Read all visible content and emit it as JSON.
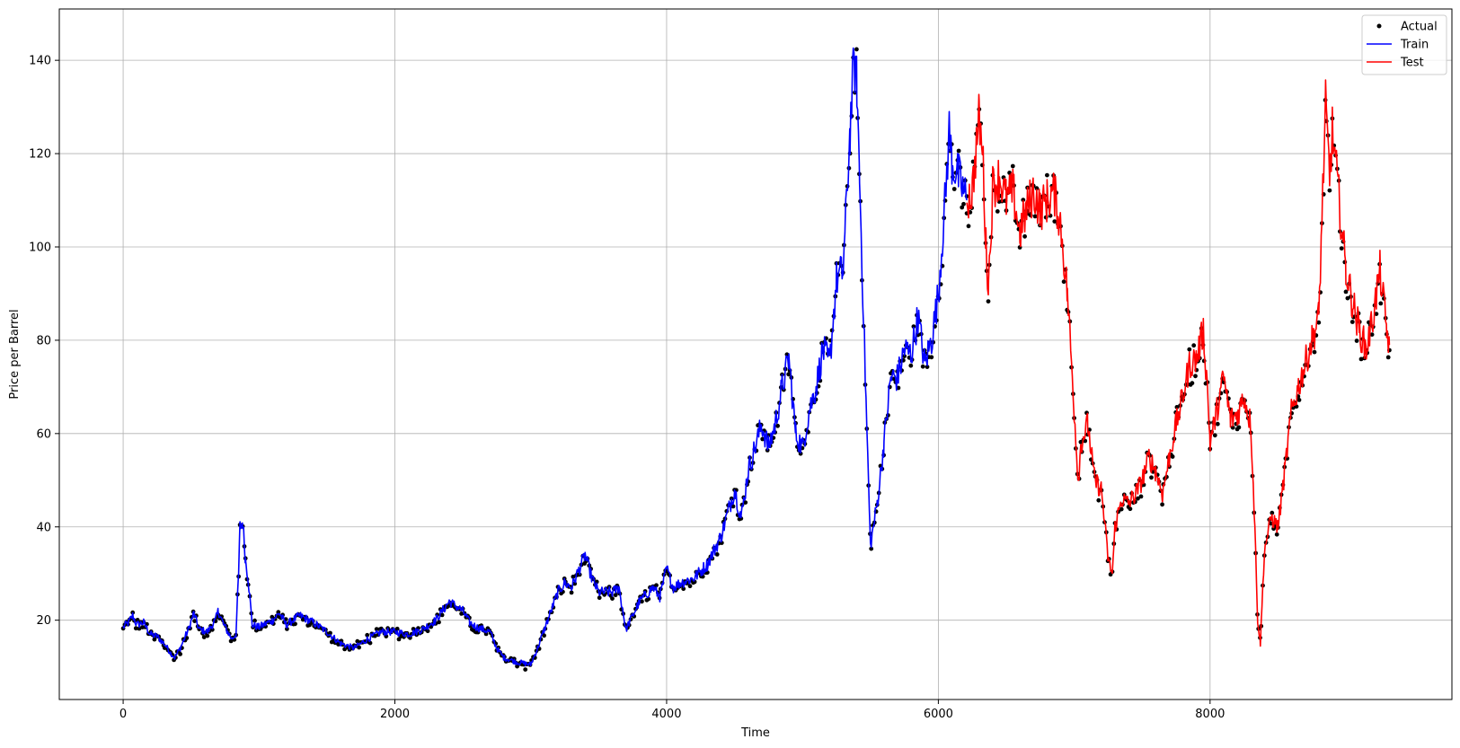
{
  "chart_data": {
    "type": "line",
    "title": "",
    "xlabel": "Time",
    "ylabel": "Price per Barrel",
    "xlim": [
      -470,
      9780
    ],
    "ylim": [
      3,
      151
    ],
    "xticks": [
      0,
      2000,
      4000,
      6000,
      8000
    ],
    "yticks": [
      20,
      40,
      60,
      80,
      100,
      120,
      140
    ],
    "grid": true,
    "legend_position": "top-right",
    "legend": [
      {
        "label": "Actual",
        "marker": "dot",
        "color": "#000000"
      },
      {
        "label": "Train",
        "marker": "line",
        "color": "#0000ff"
      },
      {
        "label": "Test",
        "marker": "line",
        "color": "#ff0000"
      }
    ],
    "train_end": 6210,
    "x_end": 9320,
    "series": [
      {
        "name": "Train",
        "color": "#0000ff",
        "keypoints": [
          [
            0,
            18.5
          ],
          [
            40,
            19.5
          ],
          [
            70,
            21.0
          ],
          [
            100,
            19.0
          ],
          [
            150,
            19.5
          ],
          [
            200,
            17.0
          ],
          [
            250,
            16.5
          ],
          [
            300,
            15.0
          ],
          [
            350,
            13.0
          ],
          [
            380,
            12.0
          ],
          [
            420,
            14.0
          ],
          [
            480,
            18.0
          ],
          [
            520,
            21.5
          ],
          [
            560,
            18.0
          ],
          [
            620,
            17.5
          ],
          [
            680,
            20.0
          ],
          [
            700,
            22.0
          ],
          [
            740,
            19.0
          ],
          [
            800,
            16.0
          ],
          [
            830,
            17.0
          ],
          [
            850,
            30.0
          ],
          [
            860,
            40.0
          ],
          [
            880,
            41.0
          ],
          [
            900,
            33.0
          ],
          [
            920,
            29.0
          ],
          [
            950,
            19.0
          ],
          [
            1000,
            18.5
          ],
          [
            1100,
            20.0
          ],
          [
            1150,
            21.5
          ],
          [
            1200,
            19.0
          ],
          [
            1300,
            21.0
          ],
          [
            1400,
            19.5
          ],
          [
            1500,
            17.5
          ],
          [
            1600,
            15.0
          ],
          [
            1700,
            14.0
          ],
          [
            1800,
            16.0
          ],
          [
            1900,
            17.5
          ],
          [
            2000,
            17.5
          ],
          [
            2100,
            17.0
          ],
          [
            2200,
            18.0
          ],
          [
            2300,
            20.0
          ],
          [
            2400,
            24.0
          ],
          [
            2500,
            22.0
          ],
          [
            2550,
            19.5
          ],
          [
            2600,
            18.5
          ],
          [
            2700,
            17.5
          ],
          [
            2750,
            14.0
          ],
          [
            2800,
            12.0
          ],
          [
            2900,
            11.0
          ],
          [
            3000,
            10.5
          ],
          [
            3050,
            14.0
          ],
          [
            3100,
            18.0
          ],
          [
            3200,
            26.0
          ],
          [
            3250,
            28.0
          ],
          [
            3300,
            27.0
          ],
          [
            3400,
            34.0
          ],
          [
            3450,
            29.0
          ],
          [
            3500,
            26.0
          ],
          [
            3600,
            26.0
          ],
          [
            3650,
            27.0
          ],
          [
            3700,
            18.0
          ],
          [
            3800,
            24.0
          ],
          [
            3900,
            27.0
          ],
          [
            3950,
            25.0
          ],
          [
            4000,
            31.0
          ],
          [
            4050,
            27.0
          ],
          [
            4100,
            28.0
          ],
          [
            4200,
            29.0
          ],
          [
            4300,
            32.0
          ],
          [
            4400,
            38.0
          ],
          [
            4500,
            48.0
          ],
          [
            4550,
            42.0
          ],
          [
            4600,
            52.0
          ],
          [
            4700,
            62.0
          ],
          [
            4750,
            57.0
          ],
          [
            4800,
            62.0
          ],
          [
            4850,
            70.0
          ],
          [
            4900,
            76.0
          ],
          [
            4950,
            60.0
          ],
          [
            5000,
            57.0
          ],
          [
            5050,
            65.0
          ],
          [
            5100,
            70.0
          ],
          [
            5150,
            78.0
          ],
          [
            5200,
            75.0
          ],
          [
            5250,
            93.0
          ],
          [
            5300,
            95.0
          ],
          [
            5350,
            125.0
          ],
          [
            5380,
            140.0
          ],
          [
            5400,
            135.0
          ],
          [
            5420,
            115.0
          ],
          [
            5450,
            85.0
          ],
          [
            5480,
            55.0
          ],
          [
            5500,
            36.0
          ],
          [
            5550,
            45.0
          ],
          [
            5600,
            58.0
          ],
          [
            5650,
            72.0
          ],
          [
            5700,
            72.0
          ],
          [
            5750,
            78.0
          ],
          [
            5800,
            77.0
          ],
          [
            5850,
            85.0
          ],
          [
            5900,
            75.0
          ],
          [
            5950,
            80.0
          ],
          [
            6000,
            90.0
          ],
          [
            6050,
            110.0
          ],
          [
            6080,
            125.0
          ],
          [
            6100,
            118.0
          ],
          [
            6150,
            115.0
          ],
          [
            6210,
            110.0
          ]
        ]
      },
      {
        "name": "Test",
        "color": "#ff0000",
        "keypoints": [
          [
            6210,
            110.0
          ],
          [
            6250,
            112.0
          ],
          [
            6300,
            128.0
          ],
          [
            6330,
            118.0
          ],
          [
            6350,
            100.0
          ],
          [
            6370,
            92.0
          ],
          [
            6400,
            113.0
          ],
          [
            6450,
            115.0
          ],
          [
            6500,
            110.0
          ],
          [
            6550,
            112.0
          ],
          [
            6600,
            103.0
          ],
          [
            6650,
            108.0
          ],
          [
            6700,
            112.0
          ],
          [
            6750,
            108.0
          ],
          [
            6800,
            110.0
          ],
          [
            6850,
            112.0
          ],
          [
            6900,
            105.0
          ],
          [
            6950,
            90.0
          ],
          [
            7000,
            65.0
          ],
          [
            7030,
            50.0
          ],
          [
            7050,
            58.0
          ],
          [
            7100,
            62.0
          ],
          [
            7150,
            50.0
          ],
          [
            7200,
            48.0
          ],
          [
            7250,
            33.0
          ],
          [
            7280,
            30.0
          ],
          [
            7300,
            40.0
          ],
          [
            7350,
            46.0
          ],
          [
            7400,
            45.0
          ],
          [
            7450,
            47.0
          ],
          [
            7500,
            50.0
          ],
          [
            7550,
            55.0
          ],
          [
            7600,
            52.0
          ],
          [
            7650,
            47.0
          ],
          [
            7700,
            55.0
          ],
          [
            7750,
            62.0
          ],
          [
            7800,
            68.0
          ],
          [
            7850,
            75.0
          ],
          [
            7900,
            76.0
          ],
          [
            7950,
            82.0
          ],
          [
            7980,
            70.0
          ],
          [
            8000,
            58.0
          ],
          [
            8050,
            65.0
          ],
          [
            8100,
            72.0
          ],
          [
            8150,
            63.0
          ],
          [
            8200,
            64.0
          ],
          [
            8250,
            68.0
          ],
          [
            8300,
            62.0
          ],
          [
            8330,
            40.0
          ],
          [
            8350,
            20.0
          ],
          [
            8370,
            15.0
          ],
          [
            8400,
            35.0
          ],
          [
            8450,
            42.0
          ],
          [
            8500,
            40.0
          ],
          [
            8550,
            52.0
          ],
          [
            8600,
            65.0
          ],
          [
            8650,
            70.0
          ],
          [
            8700,
            75.0
          ],
          [
            8750,
            80.0
          ],
          [
            8800,
            85.0
          ],
          [
            8850,
            130.0
          ],
          [
            8880,
            115.0
          ],
          [
            8900,
            125.0
          ],
          [
            8950,
            110.0
          ],
          [
            9000,
            95.0
          ],
          [
            9050,
            88.0
          ],
          [
            9100,
            82.0
          ],
          [
            9150,
            78.0
          ],
          [
            9200,
            85.0
          ],
          [
            9250,
            95.0
          ],
          [
            9300,
            82.0
          ],
          [
            9320,
            79.0
          ]
        ]
      }
    ]
  }
}
